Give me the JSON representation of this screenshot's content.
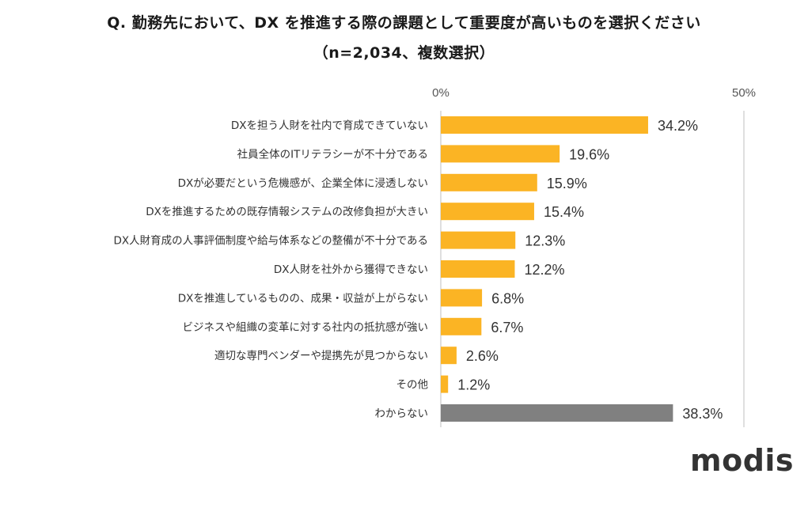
{
  "title_line1": "Q. 勤務先において、DX を推進する際の課題として重要度が高いものを選択ください",
  "title_line2": "（n=2,034、複数選択）",
  "logo": "modis",
  "colors": {
    "bar": "#FBB424",
    "bar_other": "#808080",
    "axis": "#bfbfbf",
    "text": "#333333"
  },
  "chart_data": {
    "type": "bar",
    "orientation": "horizontal",
    "xlim": [
      0,
      50
    ],
    "tick_labels": [
      "0%",
      "50%"
    ],
    "categories": [
      "DXを担う人財を社内で育成できていない",
      "社員全体のITリテラシーが不十分である",
      "DXが必要だという危機感が、企業全体に浸透しない",
      "DXを推進するための既存情報システムの改修負担が大きい",
      "DX人財育成の人事評価制度や給与体系などの整備が不十分である",
      "DX人財を社外から獲得できない",
      "DXを推進しているものの、成果・収益が上がらない",
      "ビジネスや組織の変革に対する社内の抵抗感が強い",
      "適切な専門ベンダーや提携先が見つからない",
      "その他",
      "わからない"
    ],
    "values": [
      34.2,
      19.6,
      15.9,
      15.4,
      12.3,
      12.2,
      6.8,
      6.7,
      2.6,
      1.2,
      38.3
    ],
    "value_labels": [
      "34.2%",
      "19.6%",
      "15.9%",
      "15.4%",
      "12.3%",
      "12.2%",
      "6.8%",
      "6.7%",
      "2.6%",
      "1.2%",
      "38.3%"
    ],
    "gray_last": true
  }
}
